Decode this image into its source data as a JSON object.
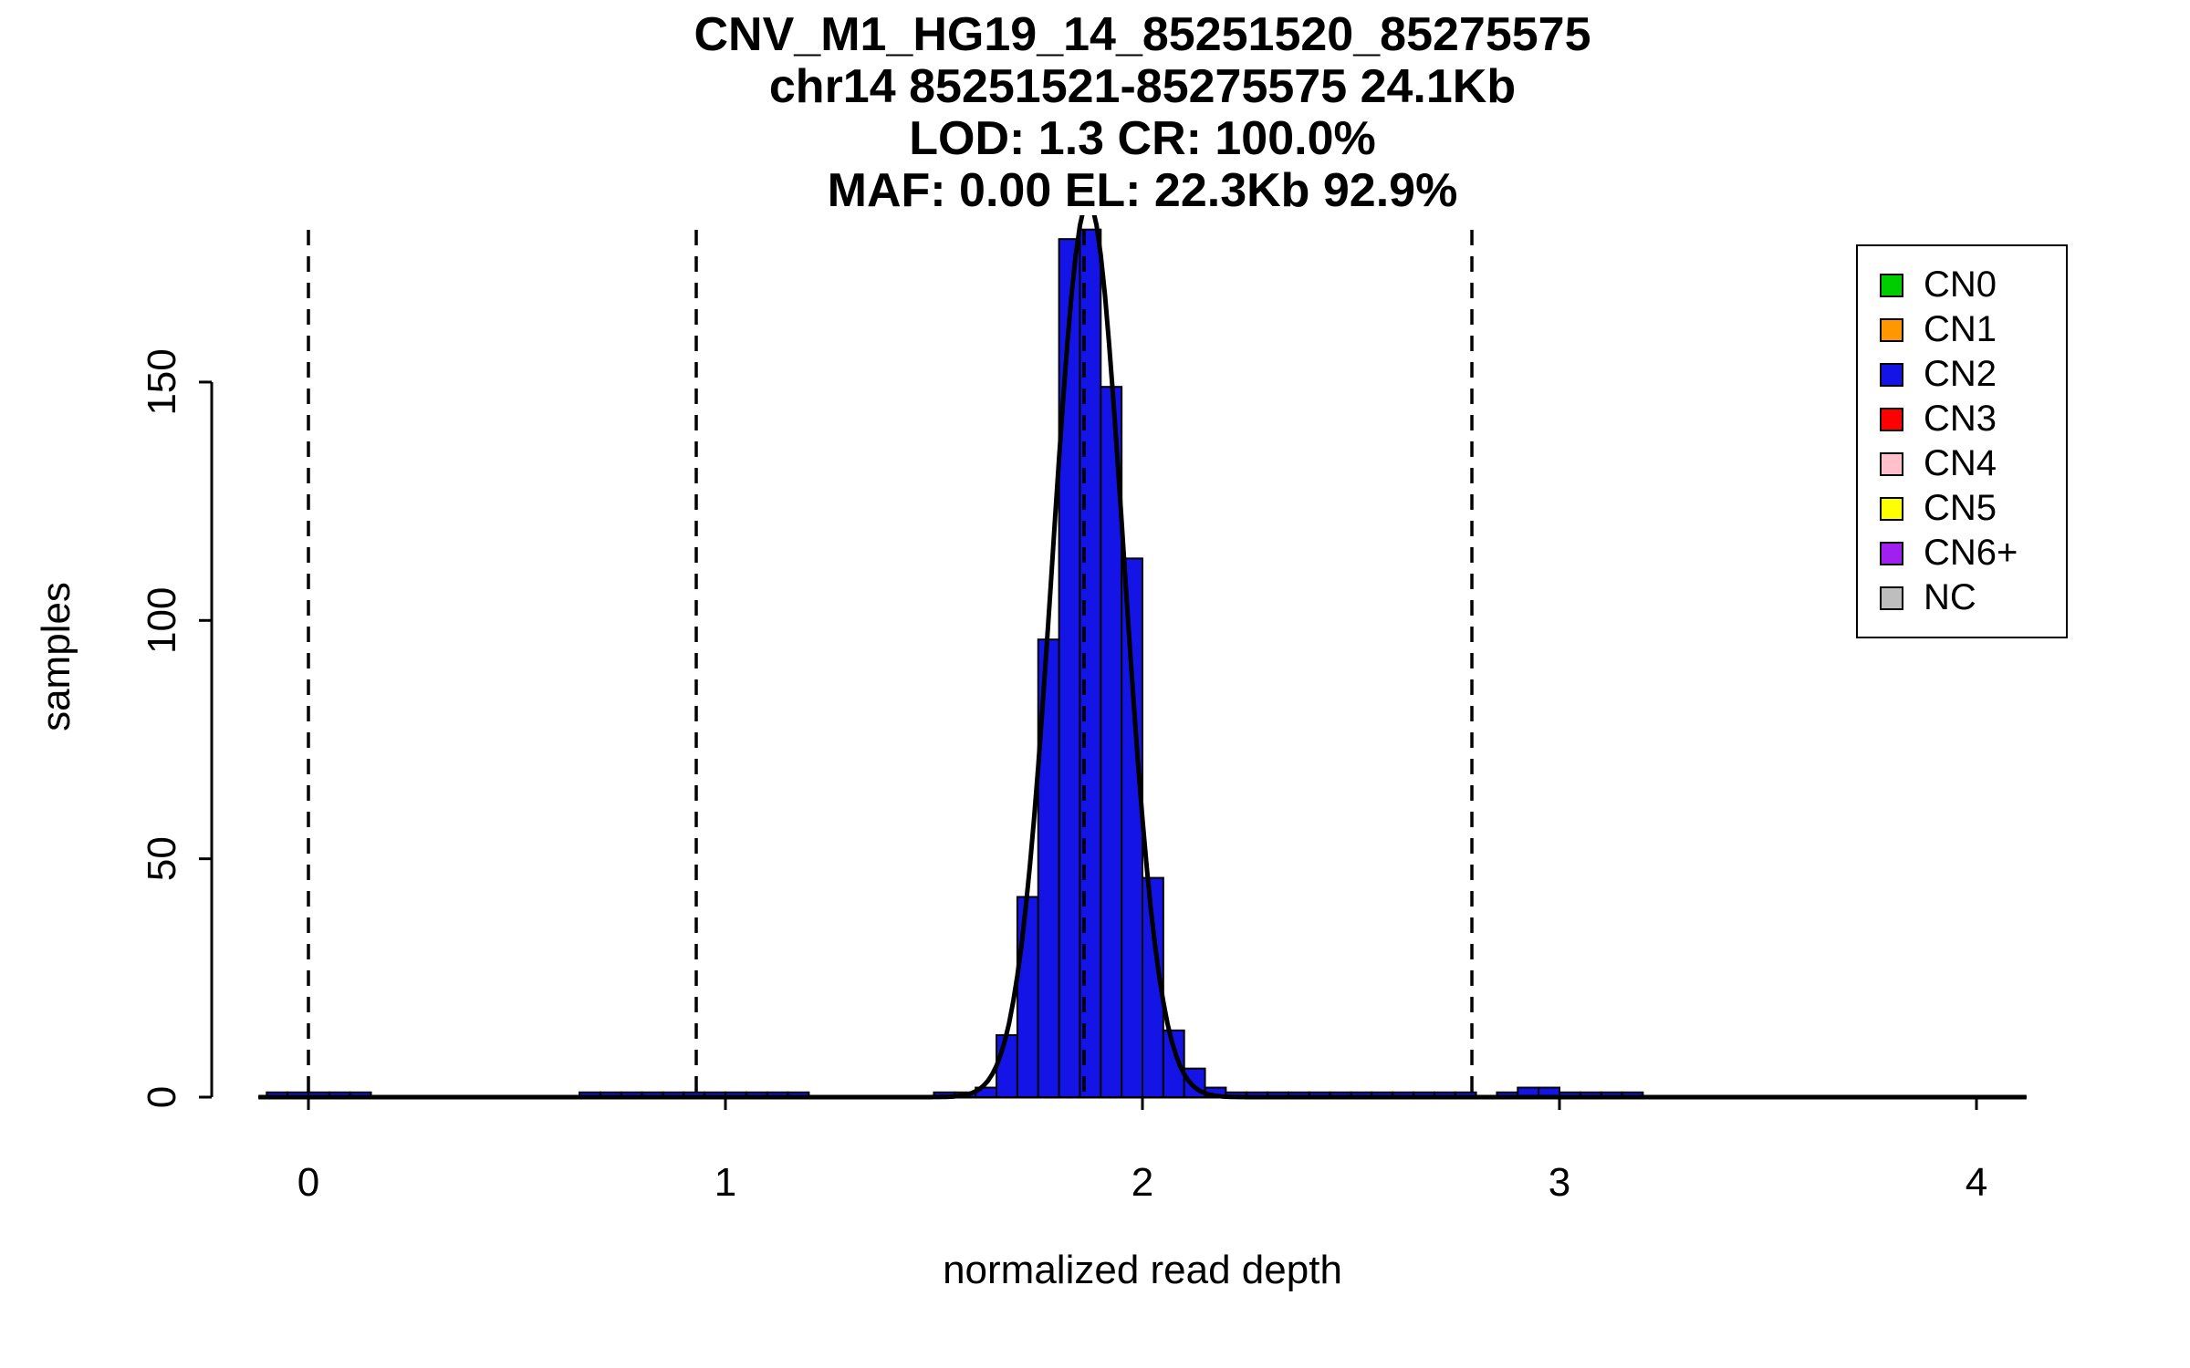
{
  "chart_data": {
    "type": "bar",
    "subtype": "histogram-with-normal-fit",
    "title_lines": [
      "CNV_M1_HG19_14_85251520_85275575",
      "chr14 85251521-85275575 24.1Kb",
      "LOD: 1.3 CR: 100.0%",
      "MAF: 0.00 EL: 22.3Kb 92.9%"
    ],
    "xlabel": "normalized read depth",
    "ylabel": "samples",
    "xlim": [
      -0.12,
      4.12
    ],
    "ylim": [
      0,
      185
    ],
    "x_ticks": [
      0,
      1,
      2,
      3,
      4
    ],
    "y_ticks": [
      0,
      50,
      100,
      150
    ],
    "grid": false,
    "bin_width": 0.05,
    "bar_fill": "#1414e6",
    "bars": [
      [
        -0.1,
        1
      ],
      [
        -0.05,
        1
      ],
      [
        0.0,
        1
      ],
      [
        0.05,
        1
      ],
      [
        0.1,
        1
      ],
      [
        0.65,
        1
      ],
      [
        0.7,
        1
      ],
      [
        0.75,
        1
      ],
      [
        0.8,
        1
      ],
      [
        0.85,
        1
      ],
      [
        0.9,
        1
      ],
      [
        0.95,
        1
      ],
      [
        1.0,
        1
      ],
      [
        1.05,
        1
      ],
      [
        1.1,
        1
      ],
      [
        1.15,
        1
      ],
      [
        1.5,
        1
      ],
      [
        1.55,
        1
      ],
      [
        1.6,
        2
      ],
      [
        1.65,
        13
      ],
      [
        1.7,
        42
      ],
      [
        1.75,
        96
      ],
      [
        1.8,
        180
      ],
      [
        1.85,
        182
      ],
      [
        1.9,
        149
      ],
      [
        1.95,
        113
      ],
      [
        2.0,
        46
      ],
      [
        2.05,
        14
      ],
      [
        2.1,
        6
      ],
      [
        2.15,
        2
      ],
      [
        2.2,
        1
      ],
      [
        2.25,
        1
      ],
      [
        2.3,
        1
      ],
      [
        2.35,
        1
      ],
      [
        2.4,
        1
      ],
      [
        2.45,
        1
      ],
      [
        2.5,
        1
      ],
      [
        2.55,
        1
      ],
      [
        2.6,
        1
      ],
      [
        2.65,
        1
      ],
      [
        2.7,
        1
      ],
      [
        2.75,
        1
      ],
      [
        2.85,
        1
      ],
      [
        2.9,
        2
      ],
      [
        2.95,
        2
      ],
      [
        3.0,
        1
      ],
      [
        3.05,
        1
      ],
      [
        3.1,
        1
      ],
      [
        3.15,
        1
      ]
    ],
    "fit_curve": {
      "shape": "gaussian",
      "mean": 1.87,
      "sd": 0.085,
      "peak": 188,
      "color": "#000000"
    },
    "dashed_lines_x": [
      0.0,
      0.93,
      1.86,
      2.79
    ],
    "legend_position": "top-right",
    "legend": [
      {
        "label": "CN0",
        "color": "#00cd00"
      },
      {
        "label": "CN1",
        "color": "#ff9800"
      },
      {
        "label": "CN2",
        "color": "#1414e6"
      },
      {
        "label": "CN3",
        "color": "#ff0000"
      },
      {
        "label": "CN4",
        "color": "#ffc0cb"
      },
      {
        "label": "CN5",
        "color": "#ffff00"
      },
      {
        "label": "CN6+",
        "color": "#a020f0"
      },
      {
        "label": "NC",
        "color": "#bebebe"
      }
    ]
  }
}
